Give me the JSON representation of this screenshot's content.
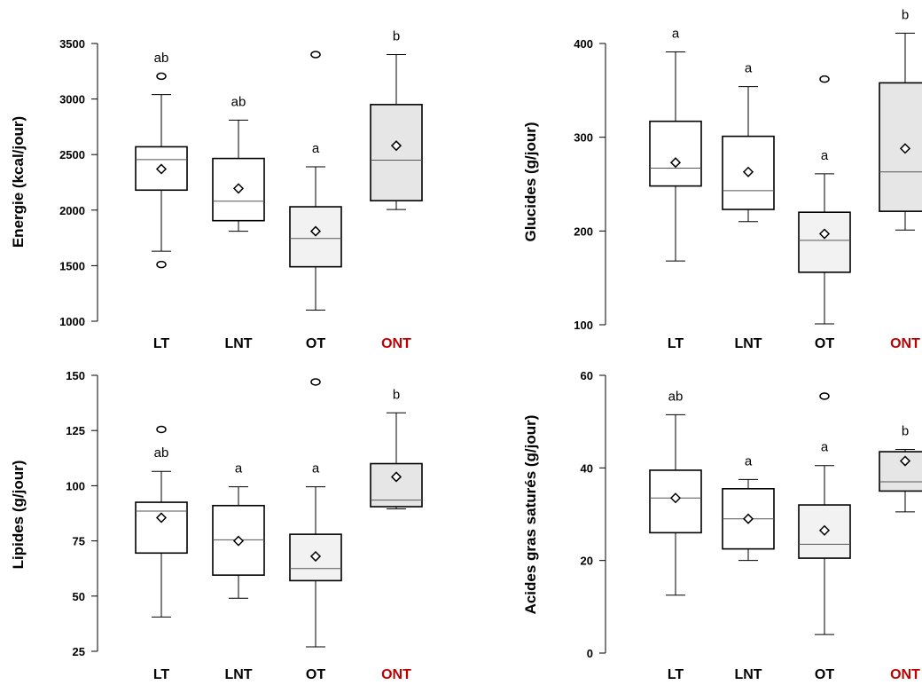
{
  "chart_data": [
    {
      "type": "boxplot",
      "ylabel": "Energie (kcal/jour)",
      "ylim": [
        1000,
        3500
      ],
      "yticks": [
        1000,
        1500,
        2000,
        2500,
        3000,
        3500
      ],
      "categories": [
        "LT",
        "LNT",
        "OT",
        "ONT"
      ],
      "category_colors": [
        "#000000",
        "#000000",
        "#000000",
        "#c00000"
      ],
      "box_fills": [
        "#ffffff",
        "#ffffff",
        "#f2f2f2",
        "#e6e6e6"
      ],
      "boxes": [
        {
          "min": 1630,
          "q1": 2180,
          "median": 2455,
          "q3": 2570,
          "max": 3040,
          "mean": 2370,
          "outliers": [
            3205,
            1510
          ],
          "label": "ab"
        },
        {
          "min": 1810,
          "q1": 1905,
          "median": 2080,
          "q3": 2465,
          "max": 2810,
          "mean": 2195,
          "outliers": [],
          "label": "ab"
        },
        {
          "min": 1100,
          "q1": 1490,
          "median": 1745,
          "q3": 2030,
          "max": 2390,
          "mean": 1810,
          "outliers": [
            3400
          ],
          "label": "a"
        },
        {
          "min": 2005,
          "q1": 2085,
          "median": 2450,
          "q3": 2950,
          "max": 3400,
          "mean": 2580,
          "outliers": [],
          "label": "b"
        }
      ]
    },
    {
      "type": "boxplot",
      "ylabel": "Glucides (g/jour)",
      "ylim": [
        100,
        400
      ],
      "yticks": [
        100,
        200,
        300,
        400
      ],
      "categories": [
        "LT",
        "LNT",
        "OT",
        "ONT"
      ],
      "category_colors": [
        "#000000",
        "#000000",
        "#000000",
        "#c00000"
      ],
      "box_fills": [
        "#ffffff",
        "#ffffff",
        "#f2f2f2",
        "#e6e6e6"
      ],
      "boxes": [
        {
          "min": 168,
          "q1": 248,
          "median": 267,
          "q3": 317,
          "max": 391,
          "mean": 273,
          "outliers": [],
          "label": "a"
        },
        {
          "min": 210,
          "q1": 223,
          "median": 243,
          "q3": 301,
          "max": 354,
          "mean": 263,
          "outliers": [],
          "label": "a"
        },
        {
          "min": 101,
          "q1": 156,
          "median": 190,
          "q3": 220,
          "max": 261,
          "mean": 197,
          "outliers": [
            362
          ],
          "label": "a"
        },
        {
          "min": 201,
          "q1": 221,
          "median": 263,
          "q3": 358,
          "max": 411,
          "mean": 288,
          "outliers": [],
          "label": "b"
        }
      ]
    },
    {
      "type": "boxplot",
      "ylabel": "Lipides (g/jour)",
      "ylim": [
        25,
        150
      ],
      "yticks": [
        25,
        50,
        75,
        100,
        125,
        150
      ],
      "categories": [
        "LT",
        "LNT",
        "OT",
        "ONT"
      ],
      "category_colors": [
        "#000000",
        "#000000",
        "#000000",
        "#c00000"
      ],
      "box_fills": [
        "#ffffff",
        "#ffffff",
        "#f2f2f2",
        "#e6e6e6"
      ],
      "boxes": [
        {
          "min": 40.5,
          "q1": 69.5,
          "median": 88.5,
          "q3": 92.5,
          "max": 106.5,
          "mean": 85.5,
          "outliers": [
            125.5
          ],
          "label": "ab"
        },
        {
          "min": 49,
          "q1": 59.5,
          "median": 75.5,
          "q3": 91,
          "max": 99.5,
          "mean": 75,
          "outliers": [],
          "label": "a"
        },
        {
          "min": 27,
          "q1": 57,
          "median": 62.5,
          "q3": 78,
          "max": 99.5,
          "mean": 68,
          "outliers": [
            147
          ],
          "label": "a"
        },
        {
          "min": 89.5,
          "q1": 90.5,
          "median": 93.5,
          "q3": 110,
          "max": 133,
          "mean": 104,
          "outliers": [],
          "label": "b"
        }
      ]
    },
    {
      "type": "boxplot",
      "ylabel": "Acides gras saturés (g/jour)",
      "ylim": [
        0,
        60
      ],
      "yticks": [
        0,
        20,
        40,
        60
      ],
      "categories": [
        "LT",
        "LNT",
        "OT",
        "ONT"
      ],
      "category_colors": [
        "#000000",
        "#000000",
        "#000000",
        "#c00000"
      ],
      "box_fills": [
        "#ffffff",
        "#ffffff",
        "#f2f2f2",
        "#e6e6e6"
      ],
      "boxes": [
        {
          "min": 12.5,
          "q1": 26,
          "median": 33.5,
          "q3": 39.5,
          "max": 51.5,
          "mean": 33.5,
          "outliers": [],
          "label": "ab"
        },
        {
          "min": 20,
          "q1": 22.5,
          "median": 29,
          "q3": 35.5,
          "max": 37.5,
          "mean": 29,
          "outliers": [],
          "label": "a"
        },
        {
          "min": 4,
          "q1": 20.5,
          "median": 23.5,
          "q3": 32,
          "max": 40.5,
          "mean": 26.5,
          "outliers": [
            55.5
          ],
          "label": "a"
        },
        {
          "min": 30.5,
          "q1": 35,
          "median": 37,
          "q3": 43.5,
          "max": 44,
          "mean": 41.5,
          "outliers": [],
          "label": "b"
        }
      ]
    }
  ]
}
